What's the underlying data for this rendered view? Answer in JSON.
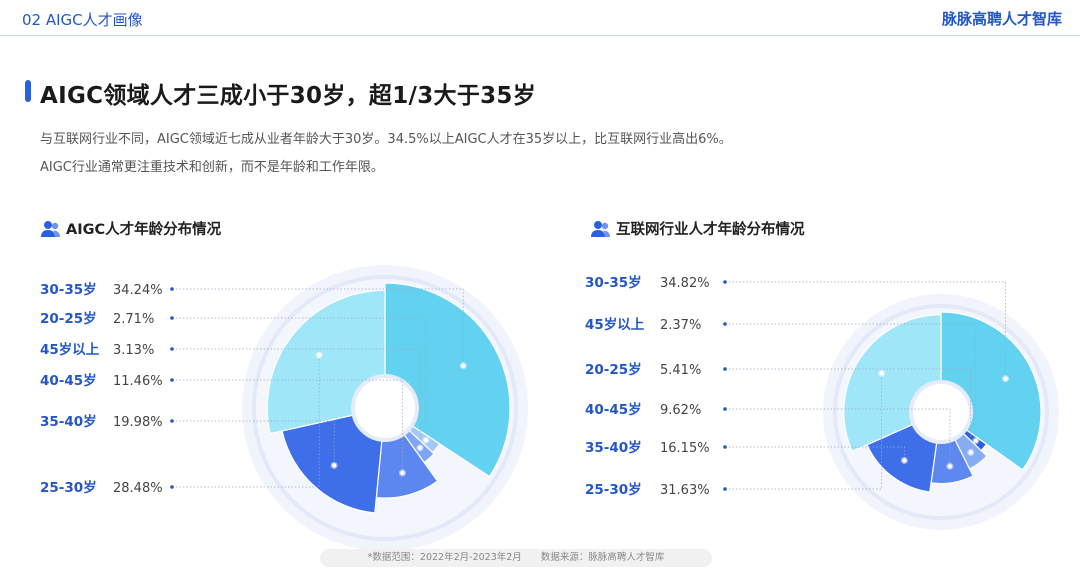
{
  "header": {
    "section_label": "02 AIGC人才画像",
    "brand": "脉脉高聘人才智库"
  },
  "headline": "AIGC领域人才三成小于30岁，超1/3大于35岁",
  "description": [
    "与互联网行业不同，AIGC领域近七成从业者年龄大于30岁。34.5%以上AIGC人才在35岁以上，比互联网行业高出6%。",
    "AIGC行业通常更注重技术和创新，而不是年龄和工作年限。"
  ],
  "icons": {
    "chart_title_icon": "people-icon"
  },
  "colors": {
    "brand_blue": "#2456c8",
    "label_blue": "#2456c8",
    "ring": "#e4eaf8"
  },
  "chart_data": [
    {
      "type": "pie",
      "title": "AIGC人才年龄分布情况",
      "categories": [
        "30-35岁",
        "20-25岁",
        "45岁以上",
        "40-45岁",
        "35-40岁",
        "25-30岁"
      ],
      "values": [
        34.24,
        2.71,
        3.13,
        11.46,
        19.98,
        28.48
      ],
      "value_labels": [
        "34.24%",
        "2.71%",
        "3.13%",
        "11.46%",
        "19.98%",
        "28.48%"
      ],
      "colors": [
        "#63d1f0",
        "#a5c8f8",
        "#7fa6f6",
        "#5c87f0",
        "#3f6ee9",
        "#9ee6f8"
      ],
      "legend": "left"
    },
    {
      "type": "pie",
      "title": "互联网行业人才年龄分布情况",
      "categories": [
        "30-35岁",
        "45岁以上",
        "20-25岁",
        "40-45岁",
        "35-40岁",
        "25-30岁"
      ],
      "values": [
        34.82,
        2.37,
        5.41,
        9.62,
        16.15,
        31.63
      ],
      "value_labels": [
        "34.82%",
        "2.37%",
        "5.41%",
        "9.62%",
        "16.15%",
        "31.63%"
      ],
      "colors": [
        "#63d1f0",
        "#2d5fe6",
        "#86acf6",
        "#5d88f0",
        "#3f6ee9",
        "#9ee6f8"
      ],
      "legend": "left"
    }
  ],
  "footer": {
    "range": "*数据范围：2022年2月-2023年2月",
    "source": "数据来源：脉脉高聘人才智库"
  }
}
